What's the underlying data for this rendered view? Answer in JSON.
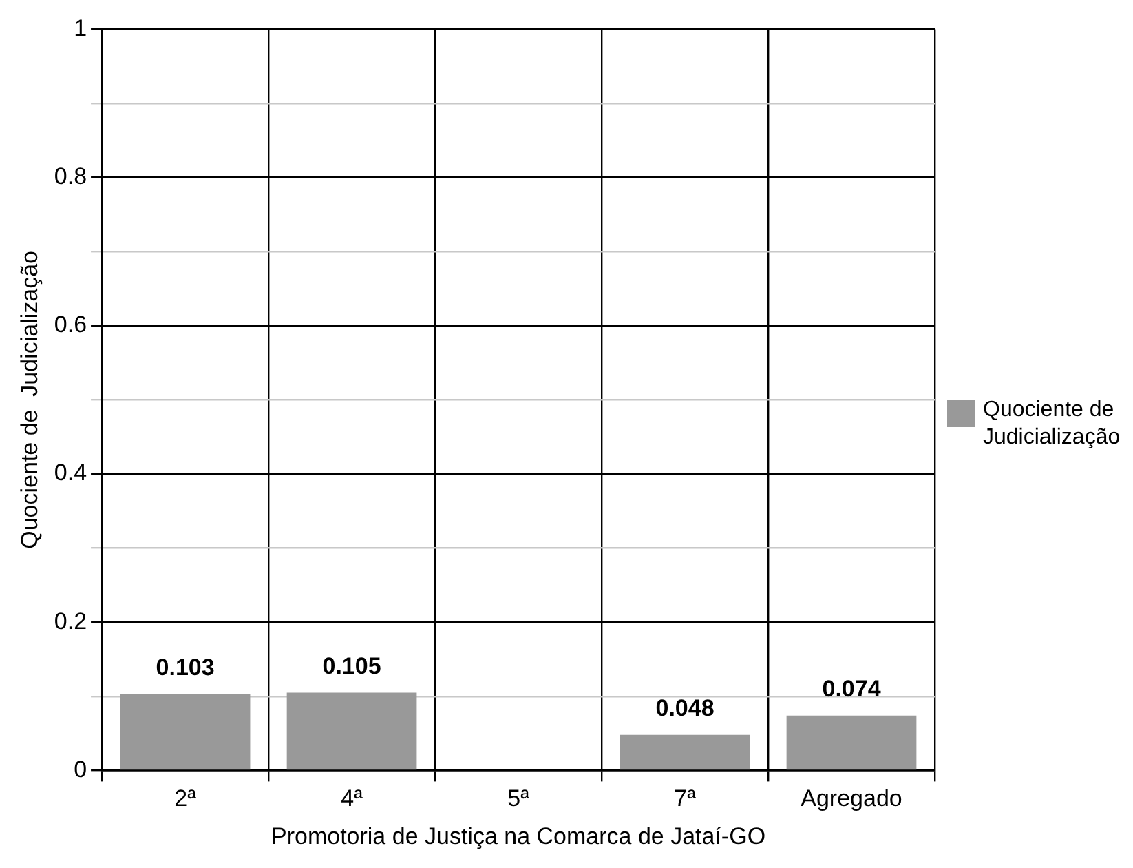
{
  "chart_data": {
    "type": "bar",
    "xlabel": "Promotoria de Justiça na Comarca de Jataí-GO",
    "ylabel": "Quociente de  Judicialização",
    "categories": [
      "2ª",
      "4ª",
      "5ª",
      "7ª",
      "Agregado"
    ],
    "series": [
      {
        "name": "Quociente de Judicialização",
        "color": "#999999",
        "values": [
          0.103,
          0.105,
          0,
          0.048,
          0.074
        ],
        "value_labels": [
          "0.103",
          "0.105",
          null,
          "0.048",
          "0.074"
        ]
      }
    ],
    "ylim": [
      0,
      1
    ],
    "yticks": [
      0,
      {
        "value": 0.1,
        "label": null
      },
      0.2,
      {
        "value": 0.3,
        "label": null
      },
      0.4,
      {
        "value": 0.5,
        "label": null
      },
      0.6,
      {
        "value": 0.7,
        "label": null
      },
      0.8,
      {
        "value": 0.9,
        "label": null
      },
      1
    ],
    "grid": true,
    "legend": "right"
  }
}
